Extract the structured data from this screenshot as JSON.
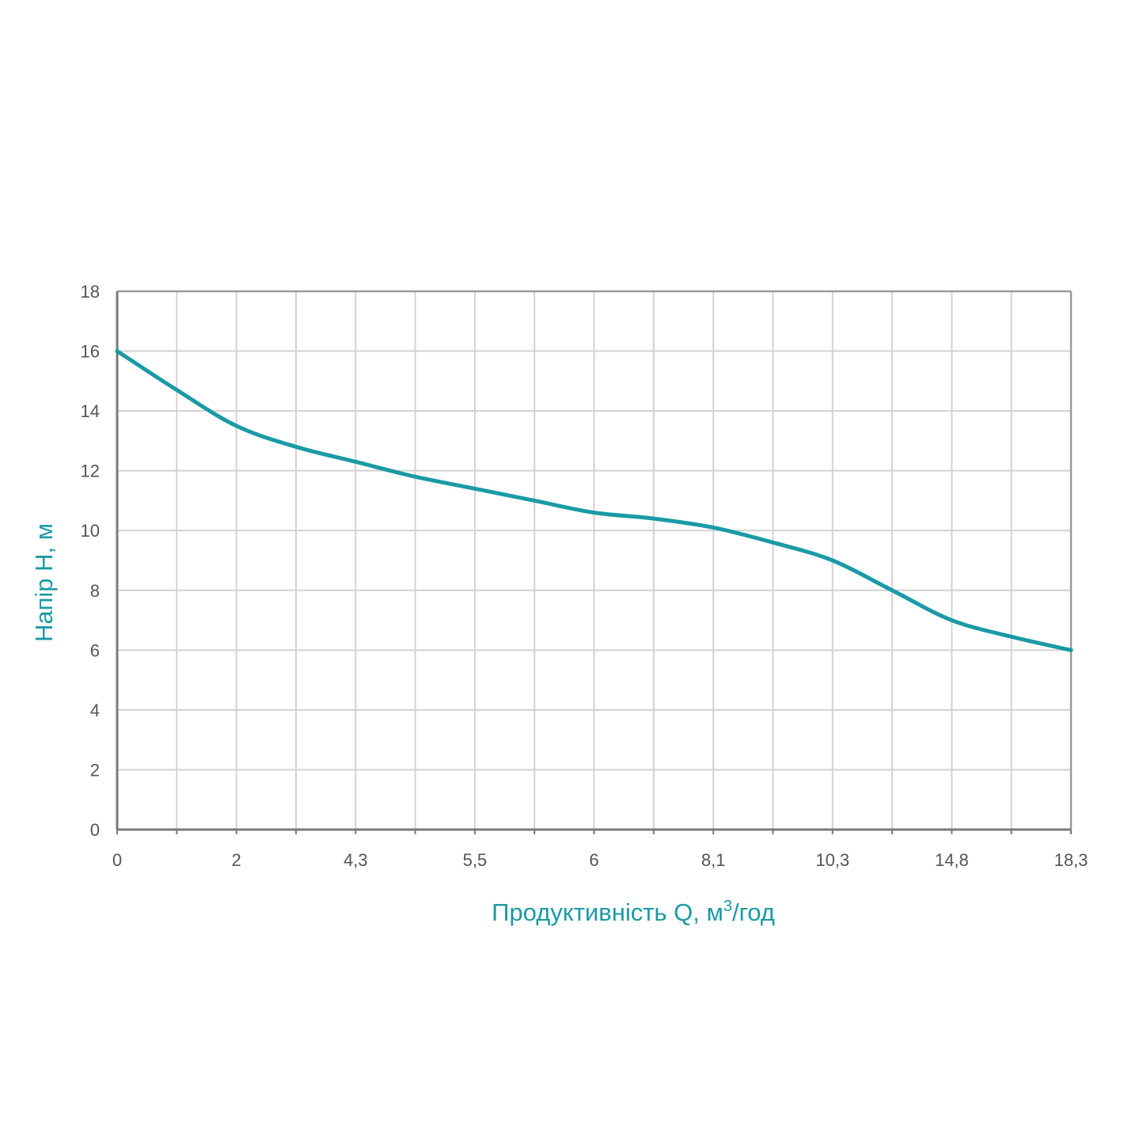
{
  "chart_data": {
    "type": "line",
    "title": "",
    "xlabel": "Продуктивність Q, м",
    "xlabel_sup": "3",
    "xlabel_suffix": "/год",
    "ylabel": "Напір H, м",
    "x_tick_labels": [
      "0",
      "2",
      "4,3",
      "5,5",
      "6",
      "8,1",
      "10,3",
      "14,8",
      "18,3"
    ],
    "y_ticks": [
      0,
      2,
      4,
      6,
      8,
      10,
      12,
      14,
      16,
      18
    ],
    "ylim": [
      0,
      18
    ],
    "x_grid_divisions": 16,
    "grid": true,
    "series": [
      {
        "color": "#1a9aa6",
        "x_tick_index": [
          0,
          1,
          2,
          3,
          4,
          5,
          6,
          7,
          8,
          9,
          10,
          11,
          12,
          13,
          14,
          15,
          16
        ],
        "values": [
          16,
          14.7,
          13.5,
          12.8,
          12.3,
          11.8,
          11.4,
          11.0,
          10.6,
          10.4,
          10.1,
          9.6,
          9.0,
          8.0,
          7.0,
          6.45,
          6.0
        ]
      }
    ],
    "colors": {
      "accent": "#1a9aa6",
      "grid": "#d2d2d2",
      "axis": "#7a7a7a",
      "tick_text": "#555555"
    }
  }
}
